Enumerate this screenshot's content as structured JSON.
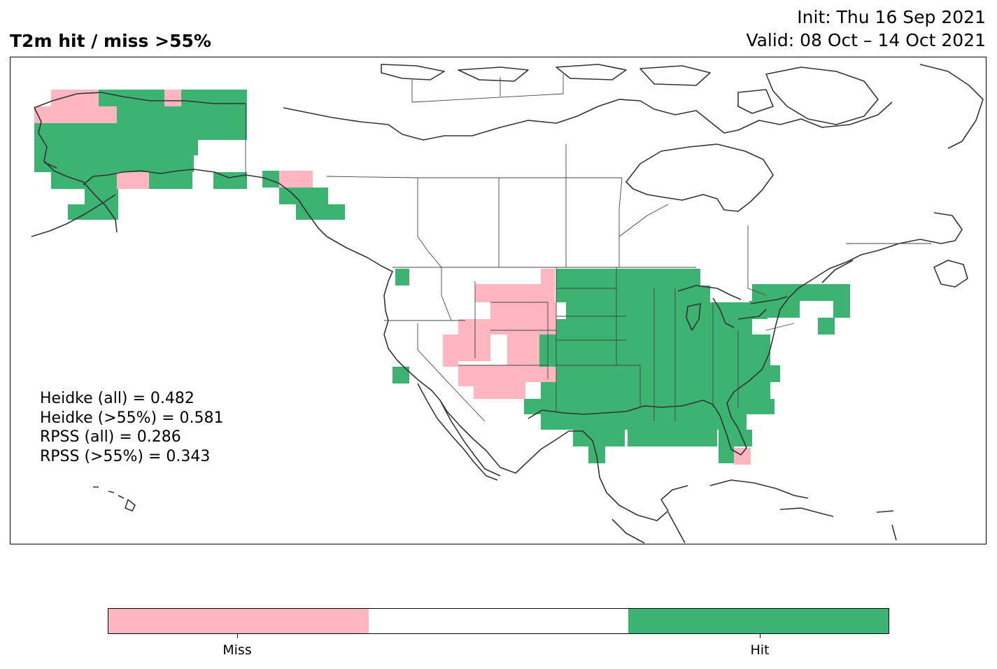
{
  "header": {
    "title": "T2m hit / miss  >55%",
    "init": "Init: Thu 16 Sep 2021",
    "valid": "Valid: 08 Oct – 14 Oct 2021"
  },
  "scores": [
    "Heidke (all) = 0.482",
    "Heidke (>55%) = 0.581",
    "RPSS (all) = 0.286",
    "RPSS (>55%) = 0.343"
  ],
  "colors": {
    "miss": "#ffb6c1",
    "neutral": "#ffffff",
    "hit": "#3cb371",
    "coastline": "#333333"
  },
  "colorbar": {
    "labels": [
      "Miss",
      "Hit"
    ]
  },
  "legend_classes": [
    "miss",
    "neutral",
    "hit"
  ]
}
